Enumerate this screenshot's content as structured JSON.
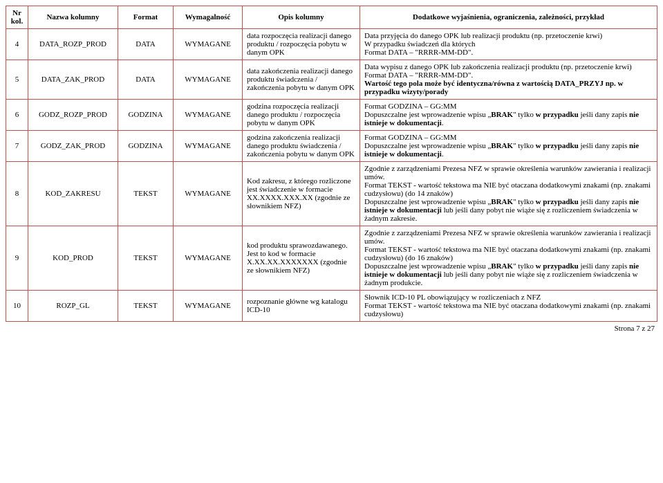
{
  "headers": {
    "nr": "Nr kol.",
    "name": "Nazwa kolumny",
    "format": "Format",
    "req": "Wymagalność",
    "desc": "Opis kolumny",
    "extra": "Dodatkowe wyjaśnienia, ograniczenia, zależności, przykład"
  },
  "rows": [
    {
      "nr": "4",
      "name": "DATA_ROZP_PROD",
      "format": "DATA",
      "req": "WYMAGANE",
      "desc": "data rozpoczęcia realizacji danego produktu / rozpoczęcia pobytu w danym OPK",
      "extra": "Data przyjęcia do danego OPK lub realizacji produktu (np. przetoczenie krwi)\nW przypadku świadczeń dla których\nFormat DATA – \"RRRR-MM-DD\"."
    },
    {
      "nr": "5",
      "name": "DATA_ZAK_PROD",
      "format": "DATA",
      "req": "WYMAGANE",
      "desc": "data zakończenia realizacji danego produktu świadczenia / zakończenia pobytu w danym OPK",
      "extra": "Data wypisu z danego OPK lub zakończenia realizacji produktu (np. przetoczenie krwi)\nFormat DATA – \"RRRR-MM-DD\".\nWartość tego pola może być identyczna/równa z wartością DATA_PRZYJ np. w przypadku wizyty/porady"
    },
    {
      "nr": "6",
      "name": "GODZ_ROZP_PROD",
      "format": "GODZINA",
      "req": "WYMAGANE",
      "desc": "godzina rozpoczęcia realizacji danego produktu / rozpoczęcia pobytu w danym OPK",
      "extra": "Format GODZINA – GG:MM\nDopuszczalne jest wprowadzenie wpisu „BRAK\" tylko w przypadku jeśli dany zapis nie istnieje w dokumentacji."
    },
    {
      "nr": "7",
      "name": "GODZ_ZAK_PROD",
      "format": "GODZINA",
      "req": "WYMAGANE",
      "desc": "godzina zakończenia realizacji danego produktu świadczenia / zakończenia pobytu w danym OPK",
      "extra": "Format GODZINA – GG:MM\nDopuszczalne jest wprowadzenie wpisu „BRAK\" tylko w przypadku jeśli dany zapis nie istnieje w dokumentacji."
    },
    {
      "nr": "8",
      "name": "KOD_ZAKRESU",
      "format": "TEKST",
      "req": "WYMAGANE",
      "desc": "Kod zakresu, z którego rozliczone jest świadczenie w formacie XX.XXXX.XXX.XX (zgodnie ze słownikiem NFZ)",
      "extra": "Zgodnie z zarządzeniami Prezesa NFZ w sprawie określenia warunków zawierania i realizacji umów.\nFormat TEKST - wartość tekstowa ma NIE być otaczana dodatkowymi znakami (np. znakami cudzysłowu) (do 14 znaków)\nDopuszczalne jest wprowadzenie wpisu „BRAK\" tylko w przypadku jeśli dany zapis nie istnieje w dokumentacji lub jeśli dany pobyt nie wiąże się z rozliczeniem świadczenia w żadnym zakresie."
    },
    {
      "nr": "9",
      "name": "KOD_PROD",
      "format": "TEKST",
      "req": "WYMAGANE",
      "desc": "kod produktu sprawozdawanego. Jest to kod w formacie X.XX.XX.XXXXXXX (zgodnie ze słownikiem NFZ)",
      "extra": "Zgodnie z zarządzeniami Prezesa NFZ w sprawie określenia warunków zawierania i realizacji umów.\nFormat TEKST - wartość tekstowa ma NIE być otaczana dodatkowymi znakami (np. znakami cudzysłowu) (do 16 znaków)\nDopuszczalne jest wprowadzenie wpisu „BRAK\" tylko w przypadku jeśli dany zapis nie istnieje w dokumentacji lub jeśli dany pobyt nie wiąże się z rozliczeniem świadczenia w żadnym produkcie."
    },
    {
      "nr": "10",
      "name": "ROZP_GL",
      "format": "TEKST",
      "req": "WYMAGANE",
      "desc": "rozpoznanie główne wg katalogu ICD-10",
      "extra": "Słownik ICD-10 PL obowiązujący w rozliczeniach z NFZ\nFormat TEKST - wartość tekstowa ma NIE być otaczana dodatkowymi znakami (np. znakami cudzysłowu)"
    }
  ],
  "footer": "Strona 7 z 27",
  "bold_fragments": {
    "5": [
      "Wartość tego pola może być identyczna/równa z wartością DATA_PRZYJ np. w przypadku wizyty/porady"
    ],
    "6": [
      "BRAK",
      "w przypadku",
      "nie istnieje w dokumentacji"
    ],
    "7": [
      "BRAK",
      "w przypadku",
      "nie istnieje w dokumentacji"
    ],
    "8": [
      "BRAK",
      "w przypadku",
      "nie istnieje w dokumentacji"
    ],
    "9": [
      "BRAK",
      "w przypadku",
      "nie istnieje w dokumentacji"
    ]
  }
}
